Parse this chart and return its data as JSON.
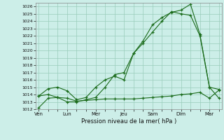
{
  "xlabel": "Pression niveau de la mer( hPa )",
  "ylim": [
    1012,
    1026.5
  ],
  "yticks": [
    1012,
    1013,
    1014,
    1015,
    1016,
    1017,
    1018,
    1019,
    1020,
    1021,
    1022,
    1023,
    1024,
    1025,
    1026
  ],
  "xtick_labels": [
    "Ven",
    "Lun",
    "Mer",
    "Jeu",
    "Sam",
    "Dim",
    "Mar"
  ],
  "xtick_positions": [
    0,
    3,
    6,
    9,
    12,
    15,
    18
  ],
  "background_color": "#cceee8",
  "grid_color": "#99ccbb",
  "line_color": "#1a6b1a",
  "line1": [
    1012.2,
    1013.5,
    1013.6,
    1013.5,
    1013.1,
    1013.2,
    1013.3,
    1013.4,
    1013.4,
    1013.4,
    1013.4,
    1013.5,
    1013.6,
    1013.7,
    1013.8,
    1014.0,
    1014.1,
    1014.3,
    1013.5,
    1014.6
  ],
  "line2": [
    1013.8,
    1014.0,
    1013.6,
    1013.0,
    1013.0,
    1013.3,
    1013.6,
    1015.0,
    1016.7,
    1017.0,
    1019.6,
    1021.3,
    1023.5,
    1024.5,
    1025.2,
    1025.5,
    1026.3,
    1022.2,
    1015.0,
    1013.5
  ],
  "line3": [
    1013.8,
    1014.8,
    1015.0,
    1014.5,
    1013.3,
    1013.6,
    1015.0,
    1016.0,
    1016.5,
    1016.0,
    1019.6,
    1021.0,
    1022.5,
    1024.0,
    1025.3,
    1025.0,
    1024.8,
    1022.0,
    1015.0,
    1014.7
  ],
  "n_points": 20,
  "xlim": [
    -0.3,
    19.3
  ]
}
